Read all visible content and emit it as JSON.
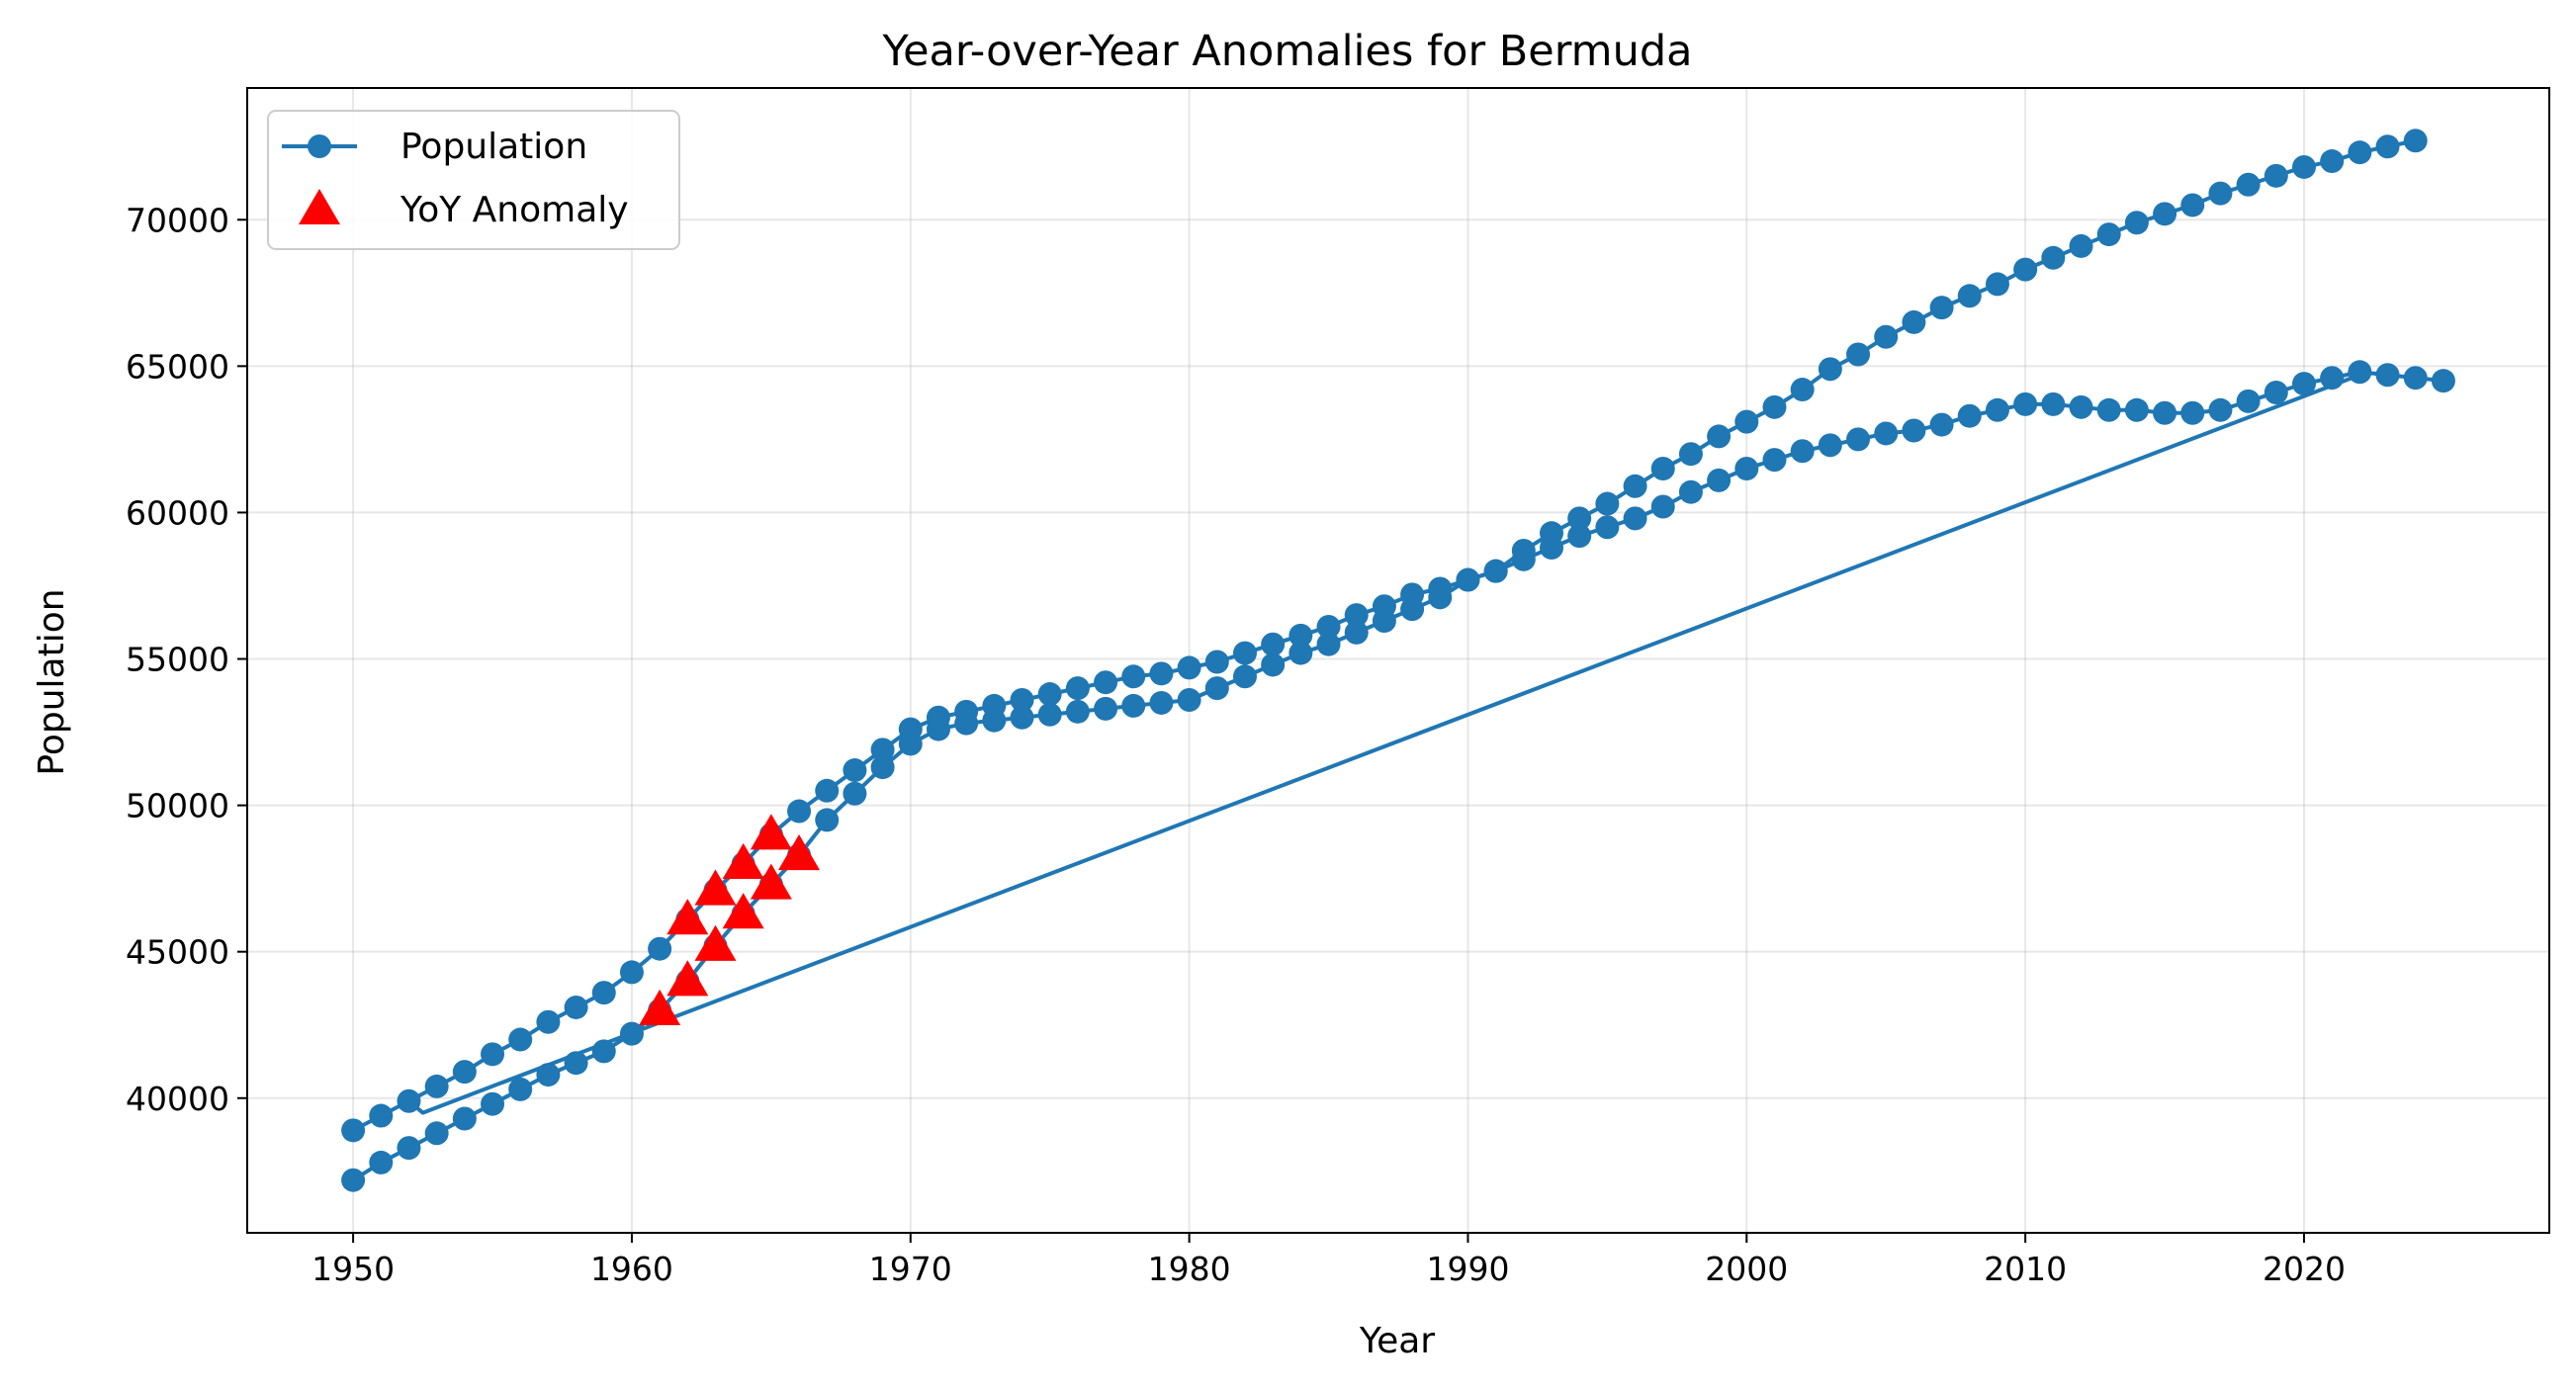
{
  "chart_data": {
    "type": "line",
    "title": "Year-over-Year Anomalies for Bermuda",
    "xlabel": "Year",
    "ylabel": "Population",
    "xlim": [
      1946.2,
      2028.8
    ],
    "ylim": [
      35400,
      74500
    ],
    "xticks": [
      1950,
      1960,
      1970,
      1980,
      1990,
      2000,
      2010,
      2020
    ],
    "yticks": [
      40000,
      45000,
      50000,
      55000,
      60000,
      65000,
      70000
    ],
    "grid": true,
    "legend_position": "top-left",
    "series": [
      {
        "name": "Population",
        "color": "#1f77b4",
        "marker": "circle",
        "segments": [
          {
            "x": [
              1950,
              1951,
              1952,
              1953,
              1954,
              1955,
              1956,
              1957,
              1958,
              1959,
              1960,
              1961,
              1962,
              1963,
              1964,
              1965,
              1966,
              1967,
              1968,
              1969,
              1970,
              1971,
              1972,
              1973,
              1974,
              1975,
              1976,
              1977,
              1978,
              1979,
              1980,
              1981,
              1982,
              1983,
              1984,
              1985,
              1986,
              1987,
              1988,
              1989,
              1990,
              1991,
              1992,
              1993,
              1994,
              1995,
              1996,
              1997,
              1998,
              1999,
              2000,
              2001,
              2002,
              2003,
              2004,
              2005,
              2006,
              2007,
              2008,
              2009,
              2010,
              2011,
              2012,
              2013,
              2014,
              2015,
              2016,
              2017,
              2018,
              2019,
              2020,
              2021,
              2022,
              2023,
              2024,
              2025
            ],
            "y": [
              37200,
              37800,
              38300,
              38800,
              39300,
              39800,
              40300,
              40800,
              41200,
              41600,
              42200,
              43000,
              44000,
              45200,
              46300,
              47300,
              48300,
              49500,
              50400,
              51300,
              52100,
              52600,
              52800,
              52900,
              53000,
              53100,
              53200,
              53300,
              53400,
              53500,
              53600,
              54000,
              54400,
              54800,
              55200,
              55500,
              55900,
              56300,
              56700,
              57100,
              57700,
              58000,
              58400,
              58800,
              59200,
              59500,
              59800,
              60200,
              60700,
              61100,
              61500,
              61800,
              62100,
              62300,
              62500,
              62700,
              62800,
              63000,
              63300,
              63500,
              63700,
              63700,
              63600,
              63500,
              63500,
              63400,
              63400,
              63500,
              63800,
              64100,
              64400,
              64600,
              64800,
              64700,
              64600,
              64500
            ]
          },
          {
            "x": [
              1952,
              1953,
              1954,
              1955,
              1956,
              1957,
              1958,
              1959,
              1960,
              1961,
              1962,
              1963,
              1964,
              1965,
              1966,
              1967,
              1968,
              1969,
              1970,
              1971,
              1972,
              1973,
              1974,
              1975,
              1976,
              1977,
              1978,
              1979,
              1980,
              1981,
              1982,
              1983,
              1984,
              1985,
              1986,
              1987,
              1988,
              1989,
              1990,
              1991,
              1992,
              1993,
              1994,
              1995,
              1996,
              1997,
              1998,
              1999,
              2000,
              2001,
              2002,
              2003,
              2004,
              2005,
              2006,
              2007,
              2008,
              2009,
              2010,
              2011,
              2012,
              2013,
              2014,
              2015,
              2016,
              2017,
              2018,
              2019,
              2020,
              2021,
              2022,
              2023,
              2024
            ],
            "y": [
              39900,
              40400,
              40900,
              41500,
              42000,
              42600,
              43100,
              43600,
              44300,
              45100,
              46100,
              47100,
              48000,
              49000,
              49800,
              50500,
              51200,
              51900,
              52600,
              53000,
              53200,
              53400,
              53600,
              53800,
              54000,
              54200,
              54400,
              54500,
              54700,
              54900,
              55200,
              55500,
              55800,
              56100,
              56500,
              56800,
              57200,
              57400,
              57700,
              58000,
              58700,
              59300,
              59800,
              60300,
              60900,
              61500,
              62000,
              62600,
              63100,
              63600,
              64200,
              64900,
              65400,
              66000,
              66500,
              67000,
              67400,
              67800,
              68300,
              68700,
              69100,
              69500,
              69900,
              70200,
              70500,
              70900,
              71200,
              71500,
              71800,
              72000,
              72300,
              72500,
              72700
            ]
          },
          {
            "x": [
              1950,
              1951,
              1952,
              1952.5,
              2022
            ],
            "y": [
              38900,
              39400,
              39900,
              39500,
              64700
            ],
            "markers_on": [
              0,
              1
            ]
          }
        ]
      },
      {
        "name": "YoY Anomaly",
        "color": "#ff0000",
        "marker": "triangle",
        "x": [
          1961,
          1962,
          1962,
          1963,
          1963,
          1964,
          1964,
          1965,
          1965,
          1966
        ],
        "y": [
          43000,
          44000,
          46100,
          45200,
          47100,
          46300,
          48000,
          47300,
          49000,
          48300
        ]
      }
    ]
  }
}
